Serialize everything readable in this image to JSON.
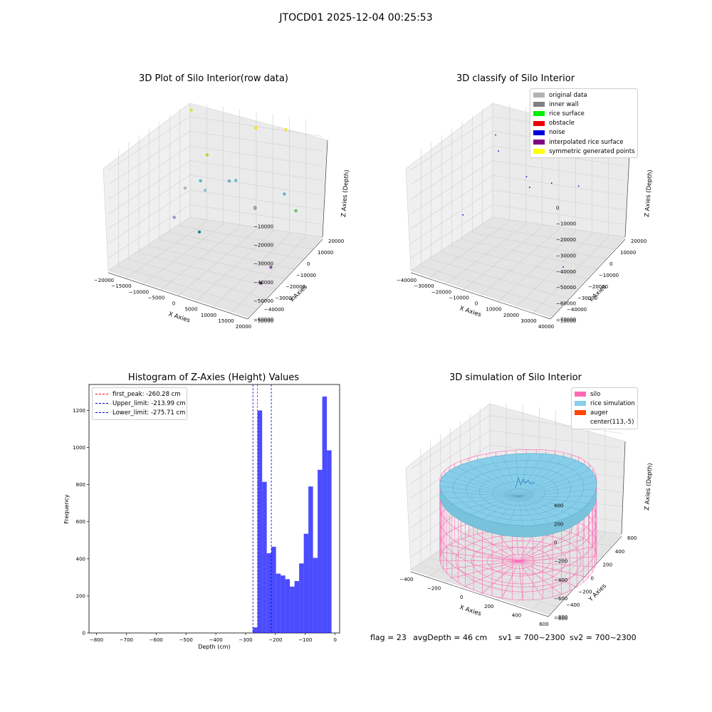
{
  "figure": {
    "suptitle": "JTOCD01 2025-12-04 00:25:53"
  },
  "panel1": {
    "title": "3D Plot of Silo Interior(row data)",
    "xlabel": "X Axies",
    "ylabel": "Y Axies",
    "zlabel": "Z Axies (Depth)",
    "x_ticks": [
      "−20000",
      "−15000",
      "−10000",
      "−5000",
      "0",
      "5000",
      "10000",
      "15000",
      "20000"
    ],
    "y_ticks": [
      "20000",
      "10000",
      "0",
      "−10000",
      "−20000",
      "−30000",
      "−40000",
      "−50000"
    ],
    "z_ticks": [
      "0",
      "−10000",
      "−20000",
      "−30000",
      "−40000",
      "−50000",
      "−60000"
    ]
  },
  "panel2": {
    "title": "3D classify of Silo Interior",
    "xlabel": "X Axies",
    "ylabel": "Y Axies",
    "zlabel": "Z Axies (Depth)",
    "x_ticks": [
      "−40000",
      "−30000",
      "−20000",
      "−10000",
      "0",
      "10000",
      "20000",
      "30000",
      "40000"
    ],
    "y_ticks": [
      "20000",
      "10000",
      "0",
      "−10000",
      "−20000",
      "−30000",
      "−40000",
      "−50000"
    ],
    "z_ticks": [
      "0",
      "−10000",
      "−20000",
      "−30000",
      "−40000",
      "−50000",
      "−60000",
      "−70000"
    ],
    "legend": [
      {
        "label": "original data",
        "color": "#b3b3b3"
      },
      {
        "label": "inner wall",
        "color": "#808080"
      },
      {
        "label": "rice surface",
        "color": "#00ee00"
      },
      {
        "label": "obstacle",
        "color": "#ee0000"
      },
      {
        "label": "noise",
        "color": "#0000dd"
      },
      {
        "label": "interpolated rice surface",
        "color": "#800080"
      },
      {
        "label": "symmetric generated points",
        "color": "#ffff00"
      }
    ]
  },
  "panel3": {
    "title": "Histogram of Z-Axies (Height) Values",
    "legend": [
      {
        "label": "first_peak: -260.28 cm",
        "color": "#ff0000"
      },
      {
        "label": "Upper_limit: -213.99 cm",
        "color": "#0000cc"
      },
      {
        "label": "Lower_limit: -275.71 cm",
        "color": "#0000cc"
      }
    ]
  },
  "panel4": {
    "title": "3D simulation of Silo Interior",
    "xlabel": "X Axies",
    "ylabel": "Y Axies",
    "zlabel": "Z Axies (Depth)",
    "x_ticks": [
      "−400",
      "−200",
      "0",
      "200",
      "400",
      "600"
    ],
    "y_ticks": [
      "600",
      "400",
      "200",
      "0",
      "−200",
      "−400",
      "−600"
    ],
    "z_ticks": [
      "400",
      "200",
      "0",
      "−200",
      "−400",
      "−600",
      "−800"
    ],
    "legend": [
      {
        "label": "silo",
        "color": "#ff69b4"
      },
      {
        "label": "rice simulation",
        "color": "#87ceeb"
      },
      {
        "label": "auger",
        "color": "#ff4500"
      },
      {
        "label": "center(113,-5)",
        "color": ""
      }
    ]
  },
  "status": {
    "flag": "flag = 23",
    "avg_depth": "avgDepth = 46 cm",
    "sv1": "sv1 = 700~2300",
    "sv2": "sv2 = 700~2300"
  },
  "chart_data": [
    {
      "type": "scatter",
      "title": "3D Plot of Silo Interior(row data)",
      "xlabel": "X Axies",
      "ylabel": "Y Axies",
      "zlabel": "Z Axies (Depth)",
      "xlim": [
        -20000,
        20000
      ],
      "ylim": [
        -50000,
        25000
      ],
      "zlim": [
        -65000,
        0
      ],
      "points": [
        {
          "x": -18000,
          "y": 20000,
          "z": -2000,
          "color": "#e0e030"
        },
        {
          "x": 12000,
          "y": 15000,
          "z": -1000,
          "color": "#e8e840"
        },
        {
          "x": 3000,
          "y": 15000,
          "z": -3000,
          "color": "#ffe000"
        },
        {
          "x": -10000,
          "y": 10000,
          "z": -20000,
          "color": "#b0d830"
        },
        {
          "x": -12000,
          "y": 10000,
          "z": -35000,
          "color": "#50b4b8"
        },
        {
          "x": -5000,
          "y": 15000,
          "z": -35000,
          "color": "#60b0c0"
        },
        {
          "x": -3000,
          "y": 15000,
          "z": -34000,
          "color": "#70b8c8"
        },
        {
          "x": -9000,
          "y": 5000,
          "z": -37000,
          "color": "#8fc0c8"
        },
        {
          "x": -15000,
          "y": 5000,
          "z": -38000,
          "color": "#b0b0c8"
        },
        {
          "x": 10000,
          "y": 20000,
          "z": -40000,
          "color": "#60b8c0"
        },
        {
          "x": 15000,
          "y": 15000,
          "z": -45000,
          "color": "#60c060"
        },
        {
          "x": -15000,
          "y": -5000,
          "z": -50000,
          "color": "#a090c0"
        },
        {
          "x": -6000,
          "y": -10000,
          "z": -52000,
          "color": "#208890"
        },
        {
          "x": 18000,
          "y": -20000,
          "z": -55000,
          "color": "#8050a0"
        },
        {
          "x": 18000,
          "y": -30000,
          "z": -58000,
          "color": "#603070"
        }
      ]
    },
    {
      "type": "scatter",
      "title": "3D classify of Silo Interior",
      "xlabel": "X Axies",
      "ylabel": "Y Axies",
      "zlabel": "Z Axies (Depth)",
      "xlim": [
        -40000,
        40000
      ],
      "ylim": [
        -50000,
        25000
      ],
      "zlim": [
        -75000,
        0
      ],
      "series_name": "noise",
      "points": [
        {
          "x": 20000,
          "y": 20000,
          "z": -2000
        },
        {
          "x": -35000,
          "y": 20000,
          "z": -18000
        },
        {
          "x": -30000,
          "y": 15000,
          "z": -25000
        },
        {
          "x": -10000,
          "y": 10000,
          "z": -35000
        },
        {
          "x": -5000,
          "y": 5000,
          "z": -38000
        },
        {
          "x": 5000,
          "y": 10000,
          "z": -36000
        },
        {
          "x": 15000,
          "y": 20000,
          "z": -42000
        },
        {
          "x": -35000,
          "y": -10000,
          "z": -55000
        },
        {
          "x": 30000,
          "y": -20000,
          "z": -65000
        }
      ]
    },
    {
      "type": "bar",
      "title": "Histogram of Z-Axies (Height) Values",
      "xlabel": "Depth (cm)",
      "ylabel": "Frequency",
      "xlim": [
        -825,
        15
      ],
      "ylim": [
        0,
        1340
      ],
      "x_ticks": [
        -800,
        -700,
        -600,
        -500,
        -400,
        -300,
        -200,
        -100,
        0
      ],
      "y_ticks": [
        0,
        200,
        400,
        600,
        800,
        1000,
        1200
      ],
      "bin_width": 15.5,
      "bin_starts": [
        -275.71,
        -260.21,
        -244.71,
        -229.21,
        -213.71,
        -198.21,
        -182.71,
        -167.21,
        -151.71,
        -136.21,
        -120.71,
        -105.21,
        -89.71,
        -74.21,
        -58.71,
        -43.21,
        -27.71
      ],
      "values": [
        30,
        1200,
        815,
        430,
        465,
        320,
        310,
        290,
        250,
        280,
        375,
        535,
        790,
        405,
        880,
        1275,
        985
      ],
      "color": "#0000ff",
      "lines": [
        {
          "name": "first_peak",
          "x": -260.28,
          "color": "#ff0000"
        },
        {
          "name": "Upper_limit",
          "x": -213.99,
          "color": "#0000cc"
        },
        {
          "name": "Lower_limit",
          "x": -275.71,
          "color": "#0000cc"
        }
      ]
    },
    {
      "type": "surface",
      "title": "3D simulation of Silo Interior",
      "xlabel": "X Axies",
      "ylabel": "Y Axies",
      "zlabel": "Z Axies (Depth)",
      "xlim": [
        -500,
        700
      ],
      "ylim": [
        -650,
        650
      ],
      "zlim": [
        -900,
        450
      ],
      "silo_radius": 620,
      "silo_top": 0,
      "silo_bottom": -900,
      "rice_surface_depth": -46
    }
  ]
}
